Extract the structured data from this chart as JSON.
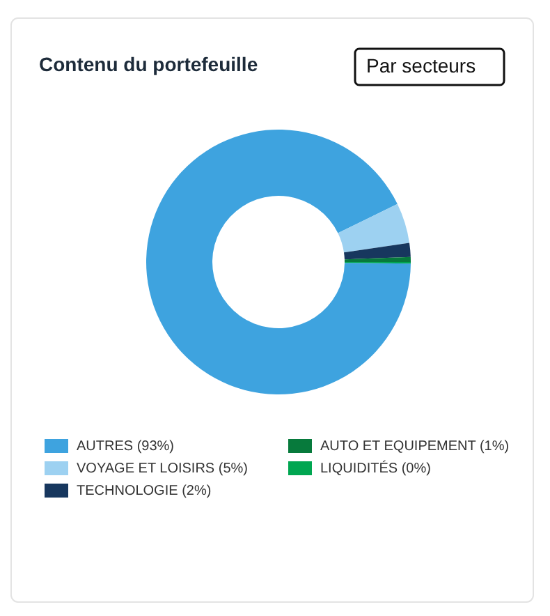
{
  "chart_data": {
    "type": "donut",
    "title": "Contenu du portefeuille",
    "annotations": [
      "Par secteurs"
    ],
    "categories": [
      "AUTRES (93%)",
      "VOYAGE ET LOISIRS (5%)",
      "TECHNOLOGIE (2%)",
      "AUTO ET EQUIPEMENT (1%)",
      "LIQUIDITÉS (0%)"
    ],
    "values": [
      92.6,
      4.9,
      1.7,
      0.6,
      0.2
    ],
    "colors": [
      "#3ea3df",
      "#9dd1f1",
      "#17375e",
      "#077a3c",
      "#00a651"
    ],
    "legend": "bottom"
  }
}
